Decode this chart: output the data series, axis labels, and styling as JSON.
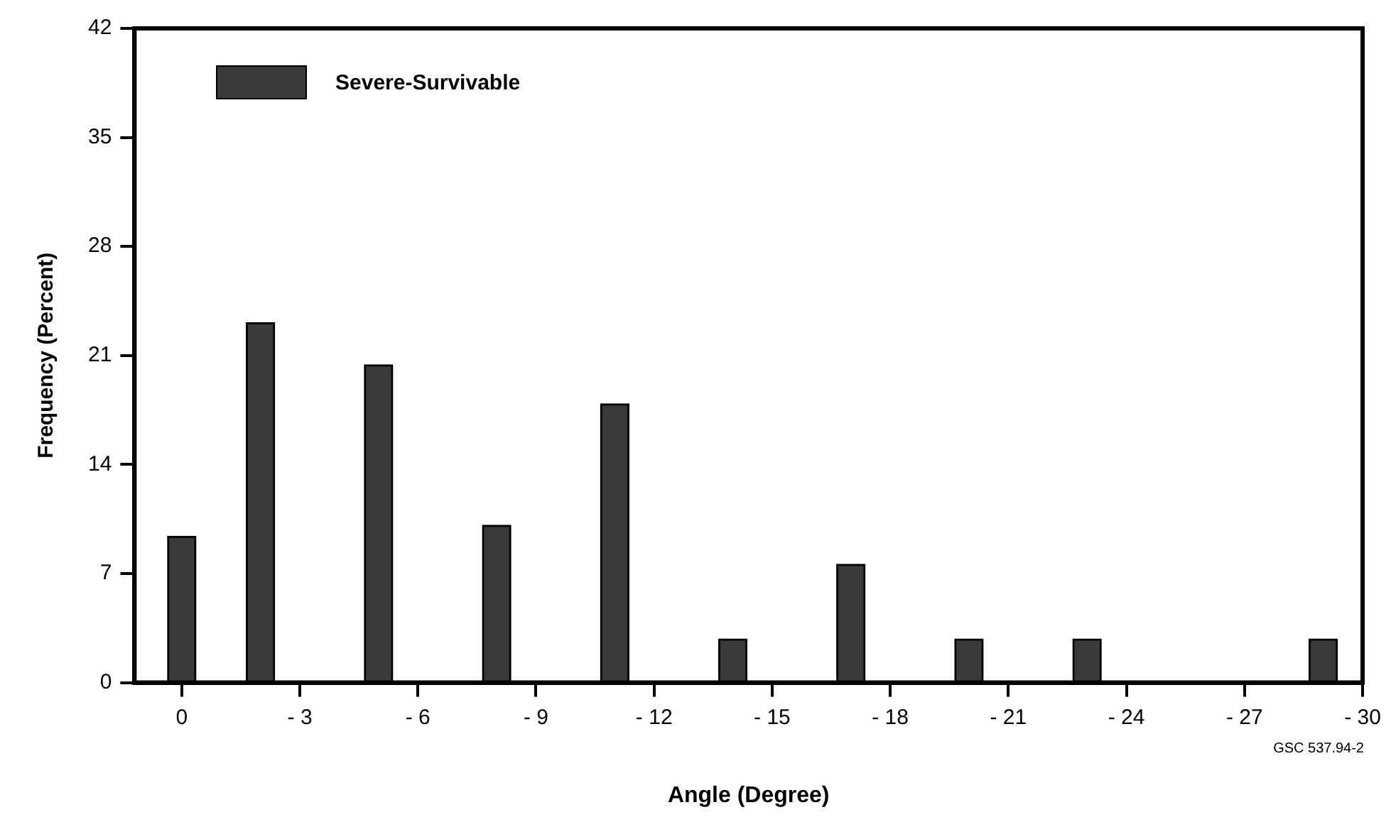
{
  "chart_data": {
    "type": "bar",
    "xlabel": "Angle (Degree)",
    "ylabel": "Frequency (Percent)",
    "x": [
      0,
      -2,
      -5,
      -8,
      -11,
      -14,
      -17,
      -20,
      -23,
      -29
    ],
    "series": [
      {
        "name": "Severe-Survivable",
        "color": "#3a3a3a",
        "values": [
          9.4,
          23.1,
          20.4,
          10.1,
          17.9,
          2.8,
          7.6,
          2.8,
          2.8,
          2.8
        ]
      }
    ],
    "xlim": [
      1.2,
      -30
    ],
    "xticks": [
      0,
      {
        "value": -3,
        "label": "- 3"
      },
      {
        "value": -6,
        "label": "- 6"
      },
      {
        "value": -9,
        "label": "- 9"
      },
      {
        "value": -12,
        "label": "- 12"
      },
      {
        "value": -15,
        "label": "- 15"
      },
      {
        "value": -18,
        "label": "- 18"
      },
      {
        "value": -21,
        "label": "- 21"
      },
      {
        "value": -24,
        "label": "- 24"
      },
      {
        "value": -27,
        "label": "- 27"
      },
      {
        "value": -30,
        "label": "- 30"
      }
    ],
    "ylim": [
      0,
      42
    ],
    "yticks": [
      0,
      7,
      14,
      21,
      28,
      35,
      42
    ],
    "grid": false,
    "legend": "top left",
    "annotations": [
      "GSC 537.94-2"
    ]
  }
}
